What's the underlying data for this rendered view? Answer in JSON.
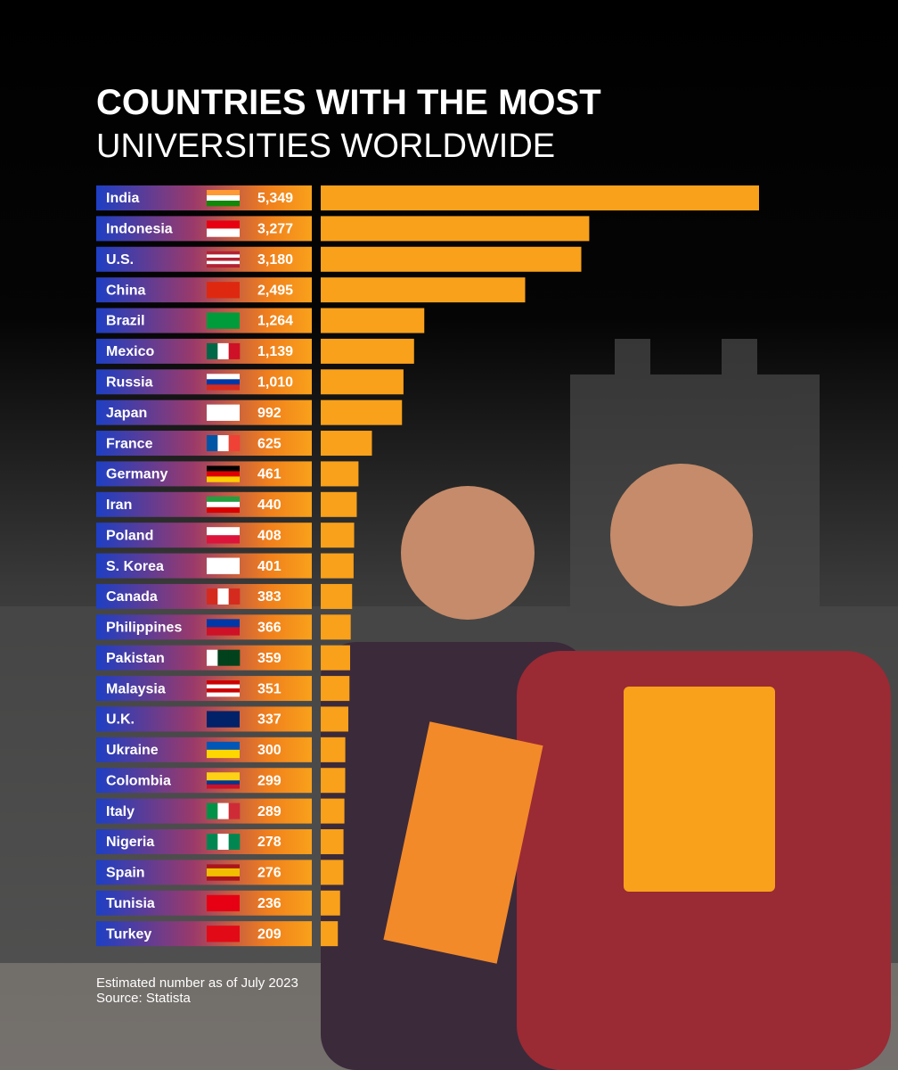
{
  "chart_data": {
    "type": "bar",
    "orientation": "horizontal",
    "title": "COUNTRIES WITH THE MOST",
    "subtitle": "UNIVERSITIES WORLDWIDE",
    "categories": [
      "India",
      "Indonesia",
      "U.S.",
      "China",
      "Brazil",
      "Mexico",
      "Russia",
      "Japan",
      "France",
      "Germany",
      "Iran",
      "Poland",
      "S. Korea",
      "Canada",
      "Philippines",
      "Pakistan",
      "Malaysia",
      "U.K.",
      "Ukraine",
      "Colombia",
      "Italy",
      "Nigeria",
      "Spain",
      "Tunisia",
      "Turkey"
    ],
    "values": [
      5349,
      3277,
      3180,
      2495,
      1264,
      1139,
      1010,
      992,
      625,
      461,
      440,
      408,
      401,
      383,
      366,
      359,
      351,
      337,
      300,
      299,
      289,
      278,
      276,
      236,
      209
    ],
    "value_labels": [
      "5,349",
      "3,277",
      "3,180",
      "2,495",
      "1,264",
      "1,139",
      "1,010",
      "992",
      "625",
      "461",
      "440",
      "408",
      "401",
      "383",
      "366",
      "359",
      "351",
      "337",
      "300",
      "299",
      "289",
      "278",
      "276",
      "236",
      "209"
    ],
    "color": "#f9a11b",
    "notes": [
      "Estimated number as of July 2023",
      "Source: Statista"
    ]
  }
}
